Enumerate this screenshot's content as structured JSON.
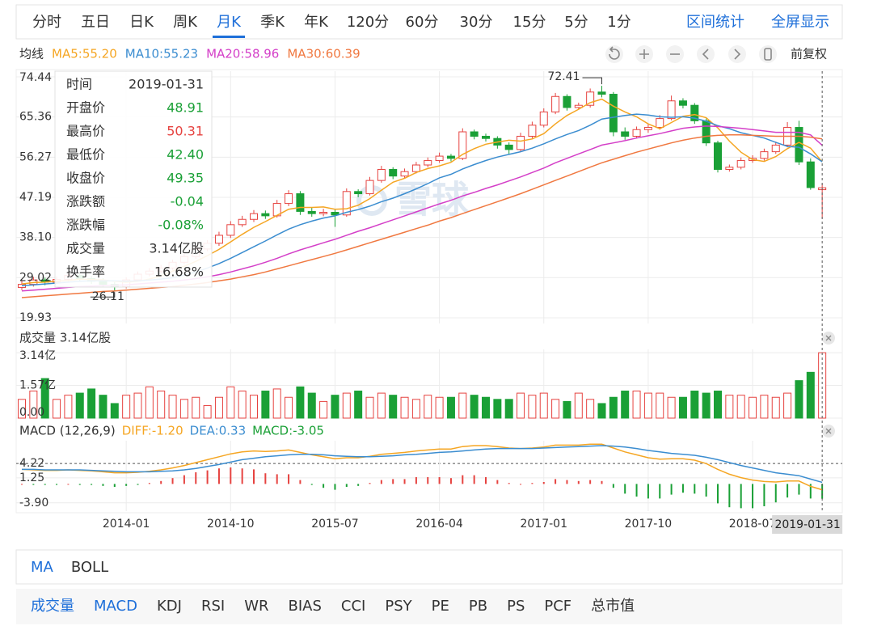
{
  "tabs": [
    "分时",
    "五日",
    "日K",
    "周K",
    "月K",
    "季K",
    "年K",
    "120分",
    "60分",
    "30分",
    "15分",
    "5分",
    "1分"
  ],
  "active_tab": 4,
  "actions": [
    "区间统计",
    "全屏显示"
  ],
  "ma_title": "均线",
  "adjust": "前复权",
  "watermark": "雪球",
  "tooltip": [
    {
      "key": "时间",
      "value": "2019-01-31",
      "color": "#333333"
    },
    {
      "key": "开盘价",
      "value": "48.91",
      "color": "#1aa036"
    },
    {
      "key": "最高价",
      "value": "50.31",
      "color": "#e64340"
    },
    {
      "key": "最低价",
      "value": "42.40",
      "color": "#1aa036"
    },
    {
      "key": "收盘价",
      "value": "49.35",
      "color": "#1aa036"
    },
    {
      "key": "涨跌额",
      "value": "-0.04",
      "color": "#1aa036"
    },
    {
      "key": "涨跌幅",
      "value": "-0.08%",
      "color": "#1aa036"
    },
    {
      "key": "成交量",
      "value": "3.14亿股",
      "color": "#333333"
    },
    {
      "key": "换手率",
      "value": "16.68%",
      "color": "#333333"
    }
  ],
  "cursor_label": "2019-01-31",
  "main_tabs": [
    "MA",
    "BOLL"
  ],
  "main_active": [
    0
  ],
  "sub_tabs": [
    "成交量",
    "MACD",
    "KDJ",
    "RSI",
    "WR",
    "BIAS",
    "CCI",
    "PSY",
    "PE",
    "PB",
    "PS",
    "PCF",
    "总市值"
  ],
  "sub_active": [
    0,
    1
  ],
  "chart_data": [
    {
      "type": "candlestick",
      "up_color": "#e64340",
      "down_color": "#1aa036",
      "categories": [
        null,
        null,
        null,
        null,
        null,
        null,
        null,
        null,
        null,
        "2014-01",
        null,
        null,
        null,
        null,
        null,
        null,
        null,
        null,
        "2014-10",
        null,
        null,
        null,
        null,
        null,
        null,
        null,
        null,
        "2015-07",
        null,
        null,
        null,
        null,
        null,
        null,
        null,
        null,
        "2016-04",
        null,
        null,
        null,
        null,
        null,
        null,
        null,
        null,
        "2017-01",
        null,
        null,
        null,
        null,
        null,
        null,
        null,
        null,
        "2017-10",
        null,
        null,
        null,
        null,
        null,
        null,
        null,
        null,
        "2018-07",
        null,
        null,
        null,
        null,
        null,
        null
      ],
      "open": [
        26.8,
        27.5,
        28.5,
        28.0,
        28.6,
        29.5,
        28.8,
        28.2,
        27.5,
        27.0,
        28.5,
        29.8,
        30.5,
        31.2,
        32.5,
        33.8,
        35.5,
        36.8,
        38.6,
        41.0,
        42.2,
        43.5,
        43.0,
        45.8,
        48.0,
        44.0,
        43.5,
        43.8,
        43.2,
        48.5,
        48.0,
        51.0,
        53.5,
        52.0,
        53.0,
        54.5,
        55.5,
        56.5,
        56.0,
        62.0,
        61.0,
        60.5,
        59.0,
        58.0,
        61.0,
        63.5,
        66.5,
        70.0,
        67.5,
        68.0,
        71.0,
        70.5,
        62.0,
        61.0,
        62.5,
        63.0,
        65.0,
        69.0,
        68.0,
        64.5,
        59.5,
        53.5,
        54.0,
        55.5,
        56.0,
        57.5,
        59.0,
        63.0,
        55.2,
        48.91
      ],
      "high": [
        28.3,
        29.2,
        29.0,
        29.3,
        30.4,
        30.0,
        29.4,
        28.9,
        28.0,
        29.1,
        30.4,
        31.2,
        31.9,
        33.1,
        34.5,
        36.2,
        37.5,
        39.4,
        41.8,
        43.0,
        44.3,
        44.2,
        46.6,
        48.8,
        48.6,
        44.8,
        44.6,
        44.5,
        49.2,
        49.0,
        51.8,
        54.3,
        54.0,
        53.7,
        55.2,
        56.2,
        57.3,
        57.0,
        62.8,
        62.5,
        61.6,
        61.0,
        59.6,
        61.8,
        64.3,
        67.3,
        70.8,
        70.5,
        68.6,
        71.8,
        72.41,
        71.0,
        63.0,
        63.2,
        63.8,
        65.8,
        70.2,
        69.6,
        68.5,
        65.0,
        60.0,
        54.6,
        56.2,
        56.7,
        58.2,
        59.8,
        64.2,
        64.5,
        56.0,
        50.31
      ],
      "low": [
        26.2,
        27.0,
        27.3,
        27.6,
        28.2,
        28.2,
        27.6,
        26.9,
        26.11,
        26.6,
        28.1,
        29.3,
        30.0,
        30.8,
        32.0,
        33.3,
        35.0,
        36.2,
        38.0,
        40.5,
        41.6,
        42.3,
        42.6,
        45.2,
        43.2,
        42.8,
        42.9,
        40.5,
        42.8,
        47.2,
        47.6,
        50.5,
        51.3,
        51.5,
        52.6,
        54.0,
        55.0,
        55.3,
        55.6,
        60.3,
        59.8,
        58.2,
        56.8,
        57.5,
        60.5,
        63.0,
        66.0,
        66.8,
        67.0,
        67.5,
        69.8,
        61.0,
        60.2,
        60.5,
        61.8,
        62.5,
        64.6,
        67.3,
        63.8,
        58.8,
        52.8,
        53.0,
        53.5,
        55.0,
        55.5,
        57.0,
        58.5,
        54.5,
        48.9,
        42.4
      ],
      "close": [
        27.5,
        28.5,
        28.0,
        28.6,
        29.5,
        28.8,
        28.2,
        27.5,
        27.0,
        28.5,
        29.8,
        30.5,
        31.2,
        32.5,
        33.8,
        35.5,
        36.8,
        38.6,
        41.0,
        42.2,
        43.5,
        43.0,
        45.8,
        48.0,
        44.0,
        43.5,
        43.8,
        43.2,
        48.5,
        48.0,
        51.0,
        53.5,
        52.0,
        53.0,
        54.5,
        55.5,
        56.5,
        56.0,
        62.0,
        61.0,
        60.5,
        59.0,
        58.0,
        61.0,
        63.5,
        66.5,
        70.0,
        67.5,
        68.0,
        71.0,
        70.5,
        62.0,
        61.0,
        62.5,
        63.0,
        65.0,
        69.0,
        68.0,
        64.5,
        59.5,
        53.5,
        54.0,
        55.5,
        56.0,
        57.5,
        59.0,
        63.0,
        55.2,
        49.39,
        49.35
      ],
      "series": [
        {
          "name": "MA5",
          "label": "MA5:55.20",
          "color": "#f5a623",
          "values": [
            27.6,
            27.9,
            28.0,
            28.2,
            28.4,
            28.7,
            28.6,
            28.5,
            28.2,
            28.0,
            28.2,
            28.7,
            29.4,
            30.5,
            31.6,
            32.7,
            34.0,
            35.4,
            37.1,
            38.8,
            40.4,
            41.7,
            43.1,
            44.5,
            44.9,
            44.9,
            45.0,
            44.5,
            44.6,
            45.4,
            46.9,
            48.8,
            50.6,
            51.5,
            52.8,
            53.7,
            54.3,
            55.1,
            56.9,
            58.2,
            59.2,
            59.7,
            60.1,
            59.9,
            60.4,
            61.6,
            63.8,
            65.7,
            67.1,
            68.6,
            69.4,
            67.8,
            66.5,
            65.4,
            63.8,
            62.7,
            64.1,
            65.5,
            65.9,
            65.2,
            62.9,
            59.9,
            57.4,
            55.7,
            55.3,
            56.4,
            58.2,
            59.6,
            58.3,
            55.2
          ]
        },
        {
          "name": "MA10",
          "label": "MA10:55.23",
          "color": "#3b8dd0",
          "values": [
            27.2,
            27.4,
            27.6,
            27.8,
            28.0,
            28.2,
            28.3,
            28.3,
            28.3,
            28.2,
            28.3,
            28.5,
            28.7,
            29.0,
            29.6,
            30.3,
            31.2,
            32.2,
            33.4,
            34.7,
            36.0,
            37.3,
            38.7,
            40.0,
            41.0,
            41.8,
            42.5,
            43.0,
            43.8,
            44.4,
            45.2,
            46.2,
            47.0,
            48.0,
            49.1,
            50.3,
            51.6,
            52.4,
            53.6,
            54.6,
            55.5,
            56.3,
            56.9,
            57.5,
            58.3,
            59.3,
            60.4,
            61.4,
            62.3,
            63.5,
            64.9,
            65.3,
            65.7,
            66.0,
            65.8,
            65.4,
            65.3,
            65.4,
            65.1,
            64.4,
            63.4,
            62.7,
            61.8,
            61.2,
            60.6,
            59.6,
            58.7,
            58.5,
            57.0,
            55.23
          ]
        },
        {
          "name": "MA20",
          "label": "MA20:58.96",
          "color": "#d43fc8",
          "values": [
            26.0,
            26.2,
            26.4,
            26.6,
            26.8,
            27.0,
            27.1,
            27.2,
            27.3,
            27.4,
            27.6,
            27.8,
            28.0,
            28.2,
            28.5,
            28.8,
            29.2,
            29.7,
            30.3,
            31.0,
            31.7,
            32.5,
            33.4,
            34.4,
            35.3,
            36.1,
            36.9,
            37.7,
            38.6,
            39.5,
            40.3,
            41.2,
            42.1,
            43.0,
            43.9,
            44.8,
            45.7,
            46.5,
            47.5,
            48.3,
            49.2,
            50.0,
            50.9,
            51.8,
            52.8,
            53.8,
            55.0,
            56.0,
            57.0,
            58.0,
            59.0,
            59.5,
            60.0,
            60.6,
            61.1,
            61.6,
            62.2,
            62.8,
            63.1,
            63.3,
            63.2,
            63.0,
            62.8,
            62.5,
            62.2,
            61.9,
            61.9,
            61.9,
            61.3,
            58.96
          ]
        },
        {
          "name": "MA30",
          "label": "MA30:60.39",
          "color": "#f07840",
          "values": [
            24.5,
            24.7,
            24.9,
            25.1,
            25.3,
            25.5,
            25.7,
            25.9,
            26.0,
            26.2,
            26.4,
            26.6,
            26.8,
            27.0,
            27.3,
            27.6,
            27.9,
            28.3,
            28.7,
            29.2,
            29.7,
            30.3,
            31.0,
            31.7,
            32.4,
            33.1,
            33.8,
            34.5,
            35.3,
            36.1,
            36.9,
            37.7,
            38.5,
            39.3,
            40.1,
            40.9,
            41.8,
            42.6,
            43.5,
            44.4,
            45.3,
            46.2,
            47.1,
            48.0,
            49.0,
            50.0,
            51.0,
            52.0,
            53.0,
            54.0,
            55.0,
            55.8,
            56.6,
            57.4,
            58.1,
            58.8,
            59.5,
            60.1,
            60.6,
            61.0,
            61.2,
            61.3,
            61.3,
            61.2,
            61.1,
            61.0,
            61.0,
            61.0,
            60.8,
            60.39
          ]
        }
      ],
      "ylim": [
        18.65,
        75.72
      ],
      "yticks": [
        74.44,
        65.36,
        56.27,
        47.19,
        {
          "value": 38.1,
          "label": "38.10"
        },
        29.02,
        19.93
      ],
      "grid": true
    },
    {
      "type": "bar",
      "title": "成交量 3.14亿股",
      "values": [
        0.9,
        1.3,
        1.9,
        0.9,
        1.1,
        1.2,
        1.4,
        1.1,
        0.7,
        1.1,
        1.2,
        1.5,
        1.3,
        1.1,
        0.9,
        1.0,
        0.6,
        1.0,
        1.5,
        1.3,
        1.1,
        1.3,
        1.4,
        1.0,
        1.5,
        1.2,
        0.8,
        1.1,
        1.2,
        1.3,
        1.0,
        1.2,
        1.1,
        1.0,
        0.9,
        1.1,
        1.0,
        1.0,
        1.2,
        1.1,
        1.0,
        0.9,
        0.9,
        1.2,
        1.1,
        1.2,
        0.9,
        0.8,
        1.2,
        0.9,
        0.7,
        1.0,
        1.3,
        1.3,
        1.2,
        1.2,
        1.0,
        1.0,
        1.3,
        1.2,
        1.3,
        1.1,
        1.1,
        1.0,
        1.1,
        1.0,
        1.2,
        1.8,
        2.2,
        3.14
      ],
      "ylim": [
        0,
        3.3
      ],
      "yticks": [
        {
          "value": 3.14,
          "label": "3.14亿"
        },
        {
          "value": 1.57,
          "label": "1.57亿"
        },
        {
          "value": 0,
          "label": "0.00"
        }
      ],
      "grid": true
    },
    {
      "type": "macd",
      "title": "MACD (12,26,9)",
      "series": [
        {
          "name": "DIFF",
          "label": "DIFF:-1.20",
          "color": "#f5a623",
          "values": [
            3.0,
            2.9,
            2.8,
            2.8,
            2.9,
            2.8,
            2.7,
            2.5,
            2.3,
            2.3,
            2.4,
            2.6,
            2.9,
            3.3,
            3.8,
            4.4,
            5.0,
            5.6,
            6.2,
            6.6,
            6.8,
            6.7,
            6.8,
            7.0,
            6.5,
            6.0,
            5.6,
            5.2,
            5.4,
            5.4,
            5.7,
            6.1,
            6.3,
            6.5,
            6.8,
            7.0,
            7.2,
            7.2,
            7.7,
            7.9,
            7.9,
            7.7,
            7.4,
            7.3,
            7.4,
            7.6,
            8.0,
            8.0,
            8.0,
            8.2,
            8.2,
            7.4,
            6.6,
            6.0,
            5.4,
            5.1,
            5.2,
            5.2,
            4.9,
            4.2,
            3.0,
            2.0,
            1.3,
            0.8,
            0.5,
            0.4,
            0.6,
            0.6,
            -0.5,
            -1.2
          ]
        },
        {
          "name": "DEA",
          "label": "DEA:0.33",
          "color": "#3b8dd0",
          "values": [
            3.0,
            3.0,
            2.9,
            2.9,
            2.9,
            2.9,
            2.8,
            2.7,
            2.6,
            2.5,
            2.5,
            2.5,
            2.6,
            2.7,
            2.9,
            3.2,
            3.6,
            4.0,
            4.5,
            5.0,
            5.3,
            5.6,
            5.8,
            6.0,
            6.1,
            6.1,
            6.0,
            5.8,
            5.7,
            5.6,
            5.6,
            5.7,
            5.8,
            6.0,
            6.1,
            6.3,
            6.5,
            6.6,
            6.8,
            7.0,
            7.2,
            7.3,
            7.3,
            7.3,
            7.3,
            7.4,
            7.5,
            7.6,
            7.7,
            7.8,
            7.9,
            7.8,
            7.6,
            7.3,
            6.9,
            6.6,
            6.3,
            6.1,
            5.9,
            5.5,
            5.0,
            4.4,
            3.8,
            3.3,
            2.8,
            2.3,
            2.0,
            1.7,
            1.0,
            0.33
          ]
        }
      ],
      "histogram": {
        "name": "MACD",
        "label": "MACD:-3.05",
        "color": "#1aa036",
        "up_color": "#e64340",
        "values": [
          0,
          -0.2,
          -0.2,
          -0.2,
          0,
          -0.2,
          -0.2,
          -0.4,
          -0.6,
          -0.4,
          -0.2,
          0.2,
          0.6,
          1.2,
          1.8,
          2.4,
          2.8,
          3.2,
          3.4,
          3.2,
          3.0,
          2.2,
          2.0,
          2.0,
          0.8,
          -0.2,
          -0.8,
          -1.2,
          -0.6,
          -0.4,
          0.2,
          0.8,
          1.0,
          1.0,
          1.4,
          1.4,
          1.4,
          1.2,
          1.8,
          1.8,
          1.4,
          0.8,
          0.2,
          0,
          0.2,
          0.4,
          1.0,
          0.8,
          0.6,
          0.8,
          0.6,
          -0.8,
          -2.0,
          -2.6,
          -3.0,
          -3.0,
          -2.2,
          -1.8,
          -2.0,
          -2.6,
          -4.0,
          -4.8,
          -5.0,
          -5.0,
          -4.6,
          -3.8,
          -2.8,
          -2.2,
          -3.0,
          -3.05
        ]
      },
      "ylim": [
        -5.6,
        8.9
      ],
      "yticks": [
        4.22,
        1.25,
        {
          "value": -3.9,
          "label": "-3.90"
        }
      ],
      "grid": true
    }
  ]
}
